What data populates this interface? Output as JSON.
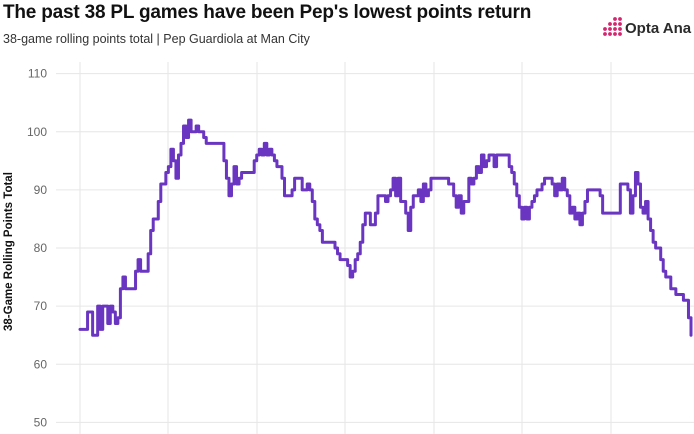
{
  "header": {
    "title": "The past 38 PL games have been Pep's lowest points return",
    "subtitle": "38-game rolling points total | Pep Guardiola at Man City",
    "brand": "Opta Ana"
  },
  "colors": {
    "line": "#6a35c0",
    "grid": "#e6e6e6",
    "brand_mark": "#d6246e"
  },
  "icons": {
    "brand": "opta-dots-icon"
  },
  "chart_data": {
    "type": "line",
    "title": "The past 38 PL games have been Pep's lowest points return",
    "subtitle": "38-game rolling points total | Pep Guardiola at Man City",
    "xlabel": "",
    "ylabel": "38-Game Rolling Points Total",
    "ylim": [
      48,
      112
    ],
    "yticks": [
      50,
      60,
      70,
      80,
      90,
      100,
      110
    ],
    "grid": true,
    "legend": "none",
    "series": [
      {
        "values": [
          66,
          66,
          66,
          69,
          69,
          65,
          65,
          70,
          66,
          70,
          70,
          67,
          70,
          69,
          67,
          68,
          73,
          75,
          73,
          73,
          73,
          73,
          76,
          78,
          76,
          76,
          76,
          79,
          83,
          85,
          85,
          88,
          91,
          91,
          93,
          94,
          97,
          95,
          92,
          96,
          98,
          101,
          99,
          102,
          100,
          100,
          101,
          100,
          100,
          99,
          98,
          98,
          98,
          98,
          98,
          98,
          98,
          95,
          92,
          89,
          91,
          94,
          91,
          92,
          93,
          93,
          93,
          93,
          93,
          95,
          96,
          97,
          96,
          98,
          96,
          97,
          96,
          95,
          94,
          94,
          92,
          89,
          89,
          89,
          90,
          92,
          92,
          92,
          90,
          90,
          91,
          90,
          88,
          85,
          84,
          83,
          81,
          81,
          81,
          81,
          81,
          80,
          79,
          78,
          78,
          78,
          77,
          75,
          76,
          78,
          79,
          81,
          84,
          86,
          86,
          84,
          84,
          86,
          89,
          89,
          89,
          88,
          89,
          90,
          92,
          89,
          92,
          88,
          88,
          86,
          83,
          87,
          89,
          89,
          90,
          88,
          91,
          89,
          90,
          92,
          92,
          92,
          92,
          92,
          92,
          92,
          91,
          91,
          89,
          87,
          89,
          86,
          88,
          88,
          92,
          91,
          92,
          94,
          93,
          96,
          94,
          95,
          96,
          96,
          94,
          96,
          96,
          96,
          96,
          96,
          94,
          93,
          91,
          89,
          87,
          85,
          87,
          85,
          87,
          88,
          89,
          90,
          90,
          91,
          92,
          92,
          92,
          91,
          89,
          91,
          90,
          92,
          90,
          89,
          86,
          87,
          85,
          86,
          84,
          86,
          88,
          90,
          90,
          90,
          90,
          90,
          89,
          86,
          86,
          86,
          86,
          86,
          86,
          86,
          91,
          91,
          91,
          90,
          86,
          89,
          93,
          91,
          87,
          86,
          88,
          85,
          83,
          81,
          80,
          80,
          78,
          76,
          75,
          75,
          73,
          73,
          72,
          72,
          72,
          71,
          71,
          68,
          65
        ]
      }
    ]
  }
}
